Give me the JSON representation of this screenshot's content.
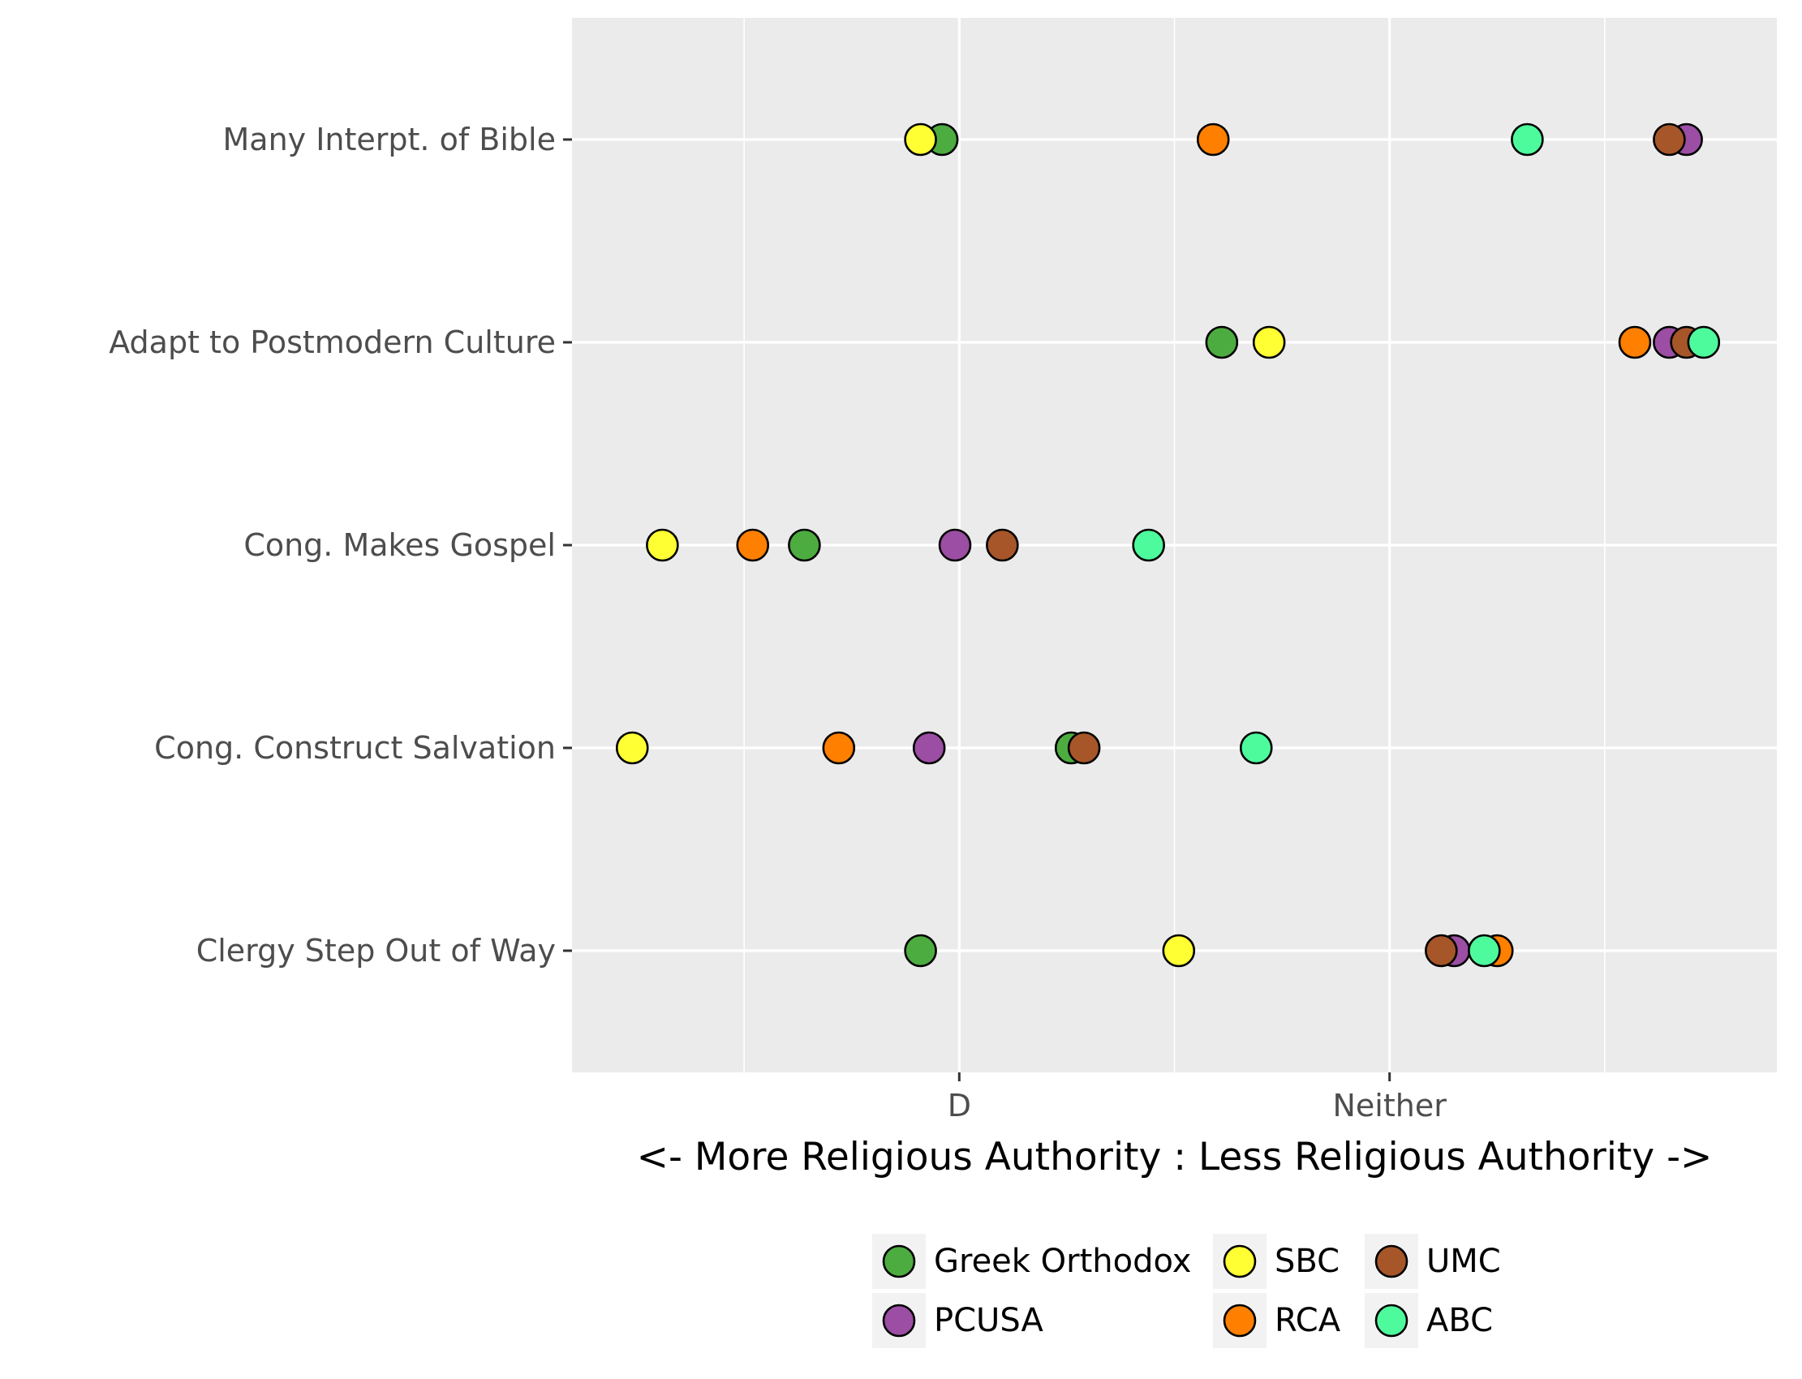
{
  "chart_data": {
    "type": "scatter",
    "title": "",
    "xlabel": "<- More Religious Authority : Less Religious Authority ->",
    "ylabel": "",
    "xlim": [
      2.1,
      4.9
    ],
    "x_ticks": [
      {
        "value": 3,
        "label": "D"
      },
      {
        "value": 4,
        "label": "Neither"
      }
    ],
    "x_minor_ticks": [
      2.5,
      3.5,
      4.5
    ],
    "categories": [
      "Many Interpt. of Bible",
      "Adapt to Postmodern Culture",
      "Cong. Makes Gospel",
      "Cong. Construct Salvation",
      "Clergy Step Out of Way"
    ],
    "series": [
      {
        "name": "Greek Orthodox",
        "color": "#4dac3f",
        "values": [
          2.96,
          3.61,
          2.64,
          3.26,
          2.91
        ]
      },
      {
        "name": "PCUSA",
        "color": "#9b4ea3",
        "values": [
          4.69,
          4.65,
          2.99,
          2.93,
          4.15
        ]
      },
      {
        "name": "SBC",
        "color": "#ffff33",
        "values": [
          2.91,
          3.72,
          2.31,
          2.24,
          3.51
        ]
      },
      {
        "name": "RCA",
        "color": "#ff7f00",
        "values": [
          3.59,
          4.57,
          2.52,
          2.72,
          4.25
        ]
      },
      {
        "name": "UMC",
        "color": "#a65628",
        "values": [
          4.65,
          4.69,
          3.1,
          3.29,
          4.12
        ]
      },
      {
        "name": "ABC",
        "color": "#4efb9c",
        "values": [
          4.32,
          4.73,
          3.44,
          3.69,
          4.22
        ]
      }
    ],
    "grid": true,
    "legend_position": "bottom",
    "panel_background": "#ebebeb",
    "grid_color": "#ffffff"
  }
}
